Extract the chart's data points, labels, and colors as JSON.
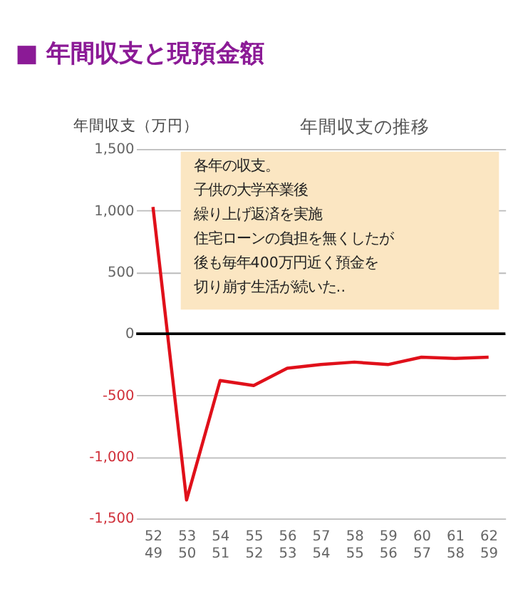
{
  "chart_data": {
    "type": "line",
    "title": "■ 年間収支と現預金額",
    "subtitle": "年間収支の推移",
    "ylabel": "年間収支（万円）",
    "categories": [
      "52\n49",
      "53\n50",
      "54\n51",
      "55\n52",
      "56\n53",
      "57\n54",
      "58\n55",
      "59\n56",
      "60\n57",
      "61\n58",
      "62\n59"
    ],
    "series": [
      {
        "color": "#e0101a",
        "values": [
          1030,
          -1350,
          -380,
          -420,
          -280,
          -250,
          -230,
          -250,
          -190,
          -200,
          -190
        ]
      }
    ],
    "ylim": [
      -1500,
      1500
    ],
    "yticks": [
      {
        "value": -1500,
        "label": "-1,500"
      },
      {
        "value": -1000,
        "label": "-1,000"
      },
      -500,
      0,
      500,
      {
        "value": 1000,
        "label": "1,000"
      },
      {
        "value": 1500,
        "label": "1,500"
      }
    ],
    "grid": "y",
    "ref_lines": [
      {
        "axis": "y",
        "value": 0,
        "color": "#000000"
      }
    ],
    "annotations": [
      "各年の収支。",
      "子供の大学卒業後",
      "繰り上げ返済を実施",
      "住宅ローンの負担を無くしたが",
      "後も毎年400万円近く預金を",
      "切り崩す生活が続いた‥"
    ],
    "line_style": "solid"
  }
}
